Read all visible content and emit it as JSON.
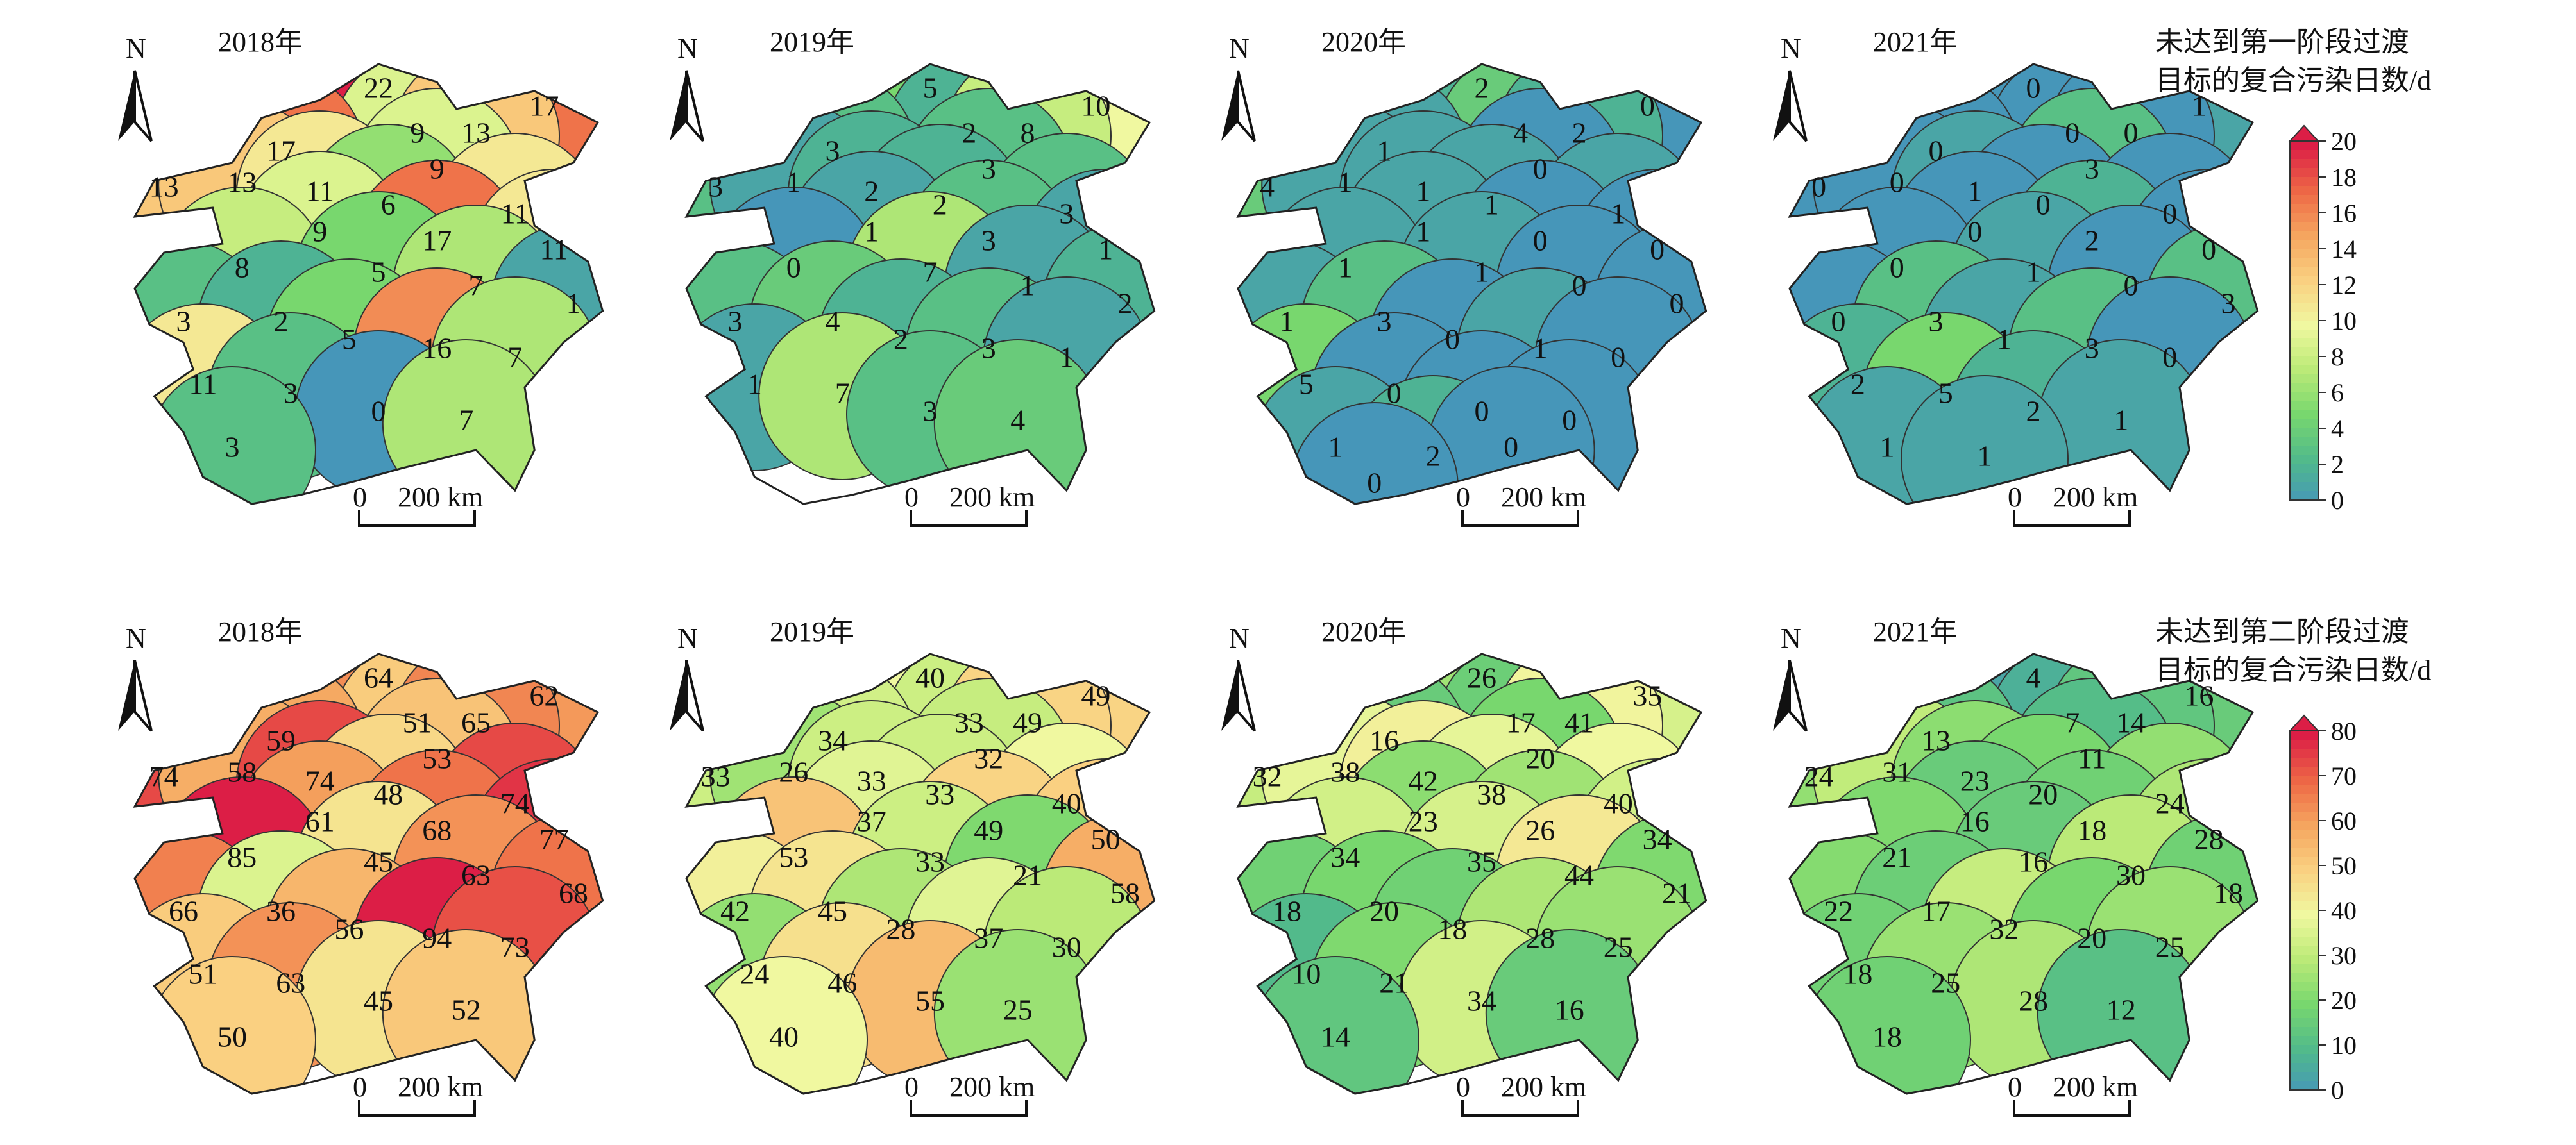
{
  "rows": [
    {
      "legend": {
        "title_line1": "未达到第一阶段过渡",
        "title_line2": "目标的复合污染日数/d",
        "ticks": [
          "20",
          "18",
          "16",
          "14",
          "12",
          "10",
          "8",
          "6",
          "4",
          "2",
          "0"
        ],
        "max": 20
      },
      "maps": [
        {
          "title": "2018年",
          "north": "N",
          "scale_zero": "0",
          "scale_label": "200 km",
          "regions": [
            {
              "value": 22
            },
            {
              "value": 17
            },
            {
              "value": 9
            },
            {
              "value": 13
            },
            {
              "value": 17
            },
            {
              "value": 9
            },
            {
              "value": 13
            },
            {
              "value": 13
            },
            {
              "value": 11
            },
            {
              "value": 6
            },
            {
              "value": 11
            },
            {
              "value": 9
            },
            {
              "value": 17
            },
            {
              "value": 11
            },
            {
              "value": 8
            },
            {
              "value": 5
            },
            {
              "value": 7
            },
            {
              "value": 1
            },
            {
              "value": 3
            },
            {
              "value": 2
            },
            {
              "value": 5
            },
            {
              "value": 16
            },
            {
              "value": 7
            },
            {
              "value": 11
            },
            {
              "value": 3
            },
            {
              "value": 0
            },
            {
              "value": 7
            },
            {
              "value": 3
            }
          ]
        },
        {
          "title": "2019年",
          "north": "N",
          "scale_zero": "0",
          "scale_label": "200 km",
          "regions": [
            {
              "value": 5
            },
            {
              "value": 10
            },
            {
              "value": 2
            },
            {
              "value": 8
            },
            {
              "value": 3
            },
            {
              "value": 3
            },
            {
              "value": 3
            },
            {
              "value": 1
            },
            {
              "value": 2
            },
            {
              "value": 2
            },
            {
              "value": 3
            },
            {
              "value": 1
            },
            {
              "value": 3
            },
            {
              "value": 1
            },
            {
              "value": 0
            },
            {
              "value": 7
            },
            {
              "value": 1
            },
            {
              "value": 2
            },
            {
              "value": 3
            },
            {
              "value": 4
            },
            {
              "value": 2
            },
            {
              "value": 3
            },
            {
              "value": 1
            },
            {
              "value": 1
            },
            {
              "value": 7
            },
            {
              "value": 3
            },
            {
              "value": 4
            }
          ]
        },
        {
          "title": "2020年",
          "north": "N",
          "scale_zero": "0",
          "scale_label": "200 km",
          "regions": [
            {
              "value": 2
            },
            {
              "value": 0
            },
            {
              "value": 4
            },
            {
              "value": 2
            },
            {
              "value": 1
            },
            {
              "value": 0
            },
            {
              "value": 4
            },
            {
              "value": 1
            },
            {
              "value": 1
            },
            {
              "value": 1
            },
            {
              "value": 1
            },
            {
              "value": 1
            },
            {
              "value": 0
            },
            {
              "value": 0
            },
            {
              "value": 1
            },
            {
              "value": 1
            },
            {
              "value": 0
            },
            {
              "value": 0
            },
            {
              "value": 1
            },
            {
              "value": 3
            },
            {
              "value": 0
            },
            {
              "value": 1
            },
            {
              "value": 0
            },
            {
              "value": 5
            },
            {
              "value": 0
            },
            {
              "value": 0
            },
            {
              "value": 0
            },
            {
              "value": 1
            },
            {
              "value": 2
            },
            {
              "value": 0
            },
            {
              "value": 0
            }
          ]
        },
        {
          "title": "2021年",
          "north": "N",
          "scale_zero": "0",
          "scale_label": "200 km",
          "regions": [
            {
              "value": 0
            },
            {
              "value": 1
            },
            {
              "value": 0
            },
            {
              "value": 0
            },
            {
              "value": 0
            },
            {
              "value": 3
            },
            {
              "value": 0
            },
            {
              "value": 0
            },
            {
              "value": 1
            },
            {
              "value": 0
            },
            {
              "value": 0
            },
            {
              "value": 0
            },
            {
              "value": 2
            },
            {
              "value": 0
            },
            {
              "value": 0
            },
            {
              "value": 1
            },
            {
              "value": 0
            },
            {
              "value": 3
            },
            {
              "value": 0
            },
            {
              "value": 3
            },
            {
              "value": 1
            },
            {
              "value": 3
            },
            {
              "value": 0
            },
            {
              "value": 2
            },
            {
              "value": 5
            },
            {
              "value": 2
            },
            {
              "value": 1
            },
            {
              "value": 1
            },
            {
              "value": 1
            }
          ]
        }
      ]
    },
    {
      "legend": {
        "title_line1": "未达到第二阶段过渡",
        "title_line2": "目标的复合污染日数/d",
        "ticks": [
          "80",
          "70",
          "60",
          "50",
          "40",
          "30",
          "20",
          "10",
          "0"
        ],
        "max": 80
      },
      "maps": [
        {
          "title": "2018年",
          "north": "N",
          "scale_zero": "0",
          "scale_label": "200 km",
          "regions": [
            {
              "value": 64
            },
            {
              "value": 62
            },
            {
              "value": 51
            },
            {
              "value": 65
            },
            {
              "value": 59
            },
            {
              "value": 53
            },
            {
              "value": 74
            },
            {
              "value": 58
            },
            {
              "value": 74
            },
            {
              "value": 48
            },
            {
              "value": 74
            },
            {
              "value": 61
            },
            {
              "value": 68
            },
            {
              "value": 77
            },
            {
              "value": 85
            },
            {
              "value": 45
            },
            {
              "value": 63
            },
            {
              "value": 68
            },
            {
              "value": 66
            },
            {
              "value": 36
            },
            {
              "value": 56
            },
            {
              "value": 94
            },
            {
              "value": 73
            },
            {
              "value": 51
            },
            {
              "value": 63
            },
            {
              "value": 45
            },
            {
              "value": 52
            },
            {
              "value": 50
            }
          ]
        },
        {
          "title": "2019年",
          "north": "N",
          "scale_zero": "0",
          "scale_label": "200 km",
          "regions": [
            {
              "value": 40
            },
            {
              "value": 49
            },
            {
              "value": 33
            },
            {
              "value": 49
            },
            {
              "value": 34
            },
            {
              "value": 32
            },
            {
              "value": 33
            },
            {
              "value": 26
            },
            {
              "value": 33
            },
            {
              "value": 33
            },
            {
              "value": 40
            },
            {
              "value": 37
            },
            {
              "value": 49
            },
            {
              "value": 50
            },
            {
              "value": 53
            },
            {
              "value": 33
            },
            {
              "value": 21
            },
            {
              "value": 58
            },
            {
              "value": 42
            },
            {
              "value": 45
            },
            {
              "value": 28
            },
            {
              "value": 37
            },
            {
              "value": 30
            },
            {
              "value": 24
            },
            {
              "value": 46
            },
            {
              "value": 55
            },
            {
              "value": 25
            },
            {
              "value": 40
            }
          ]
        },
        {
          "title": "2020年",
          "north": "N",
          "scale_zero": "0",
          "scale_label": "200 km",
          "regions": [
            {
              "value": 26
            },
            {
              "value": 35
            },
            {
              "value": 17
            },
            {
              "value": 41
            },
            {
              "value": 16
            },
            {
              "value": 20
            },
            {
              "value": 32
            },
            {
              "value": 38
            },
            {
              "value": 42
            },
            {
              "value": 38
            },
            {
              "value": 40
            },
            {
              "value": 23
            },
            {
              "value": 26
            },
            {
              "value": 34
            },
            {
              "value": 34
            },
            {
              "value": 35
            },
            {
              "value": 44
            },
            {
              "value": 21
            },
            {
              "value": 18
            },
            {
              "value": 20
            },
            {
              "value": 18
            },
            {
              "value": 28
            },
            {
              "value": 25
            },
            {
              "value": 10
            },
            {
              "value": 21
            },
            {
              "value": 34
            },
            {
              "value": 16
            },
            {
              "value": 14
            }
          ]
        },
        {
          "title": "2021年",
          "north": "N",
          "scale_zero": "0",
          "scale_label": "200 km",
          "regions": [
            {
              "value": 4
            },
            {
              "value": 16
            },
            {
              "value": 7
            },
            {
              "value": 14
            },
            {
              "value": 13
            },
            {
              "value": 11
            },
            {
              "value": 24
            },
            {
              "value": 31
            },
            {
              "value": 23
            },
            {
              "value": 20
            },
            {
              "value": 24
            },
            {
              "value": 16
            },
            {
              "value": 18
            },
            {
              "value": 28
            },
            {
              "value": 21
            },
            {
              "value": 16
            },
            {
              "value": 30
            },
            {
              "value": 18
            },
            {
              "value": 22
            },
            {
              "value": 17
            },
            {
              "value": 32
            },
            {
              "value": 20
            },
            {
              "value": 25
            },
            {
              "value": 18
            },
            {
              "value": 25
            },
            {
              "value": 28
            },
            {
              "value": 12
            },
            {
              "value": 18
            }
          ]
        }
      ]
    }
  ]
}
